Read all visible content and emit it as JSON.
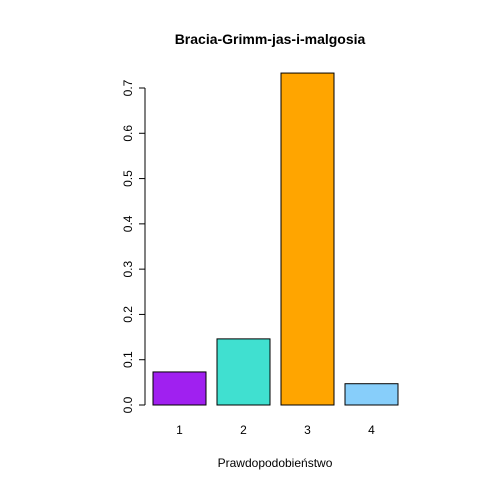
{
  "chart_data": {
    "type": "bar",
    "title": "Bracia-Grimm-jas-i-malgosia",
    "xlabel": "Prawdopodobieństwo",
    "ylabel": "",
    "categories": [
      "1",
      "2",
      "3",
      "4"
    ],
    "values": [
      0.073,
      0.146,
      0.733,
      0.047
    ],
    "colors": [
      "#a020f0",
      "#40e0d0",
      "#ffa500",
      "#87cefa"
    ],
    "ylim": [
      0,
      0.7
    ],
    "yticks": [
      0.0,
      0.1,
      0.2,
      0.3,
      0.4,
      0.5,
      0.6,
      0.7
    ],
    "ytick_labels": [
      "0.0",
      "0.1",
      "0.2",
      "0.3",
      "0.4",
      "0.5",
      "0.6",
      "0.7"
    ],
    "grid": false,
    "legend": "none"
  }
}
